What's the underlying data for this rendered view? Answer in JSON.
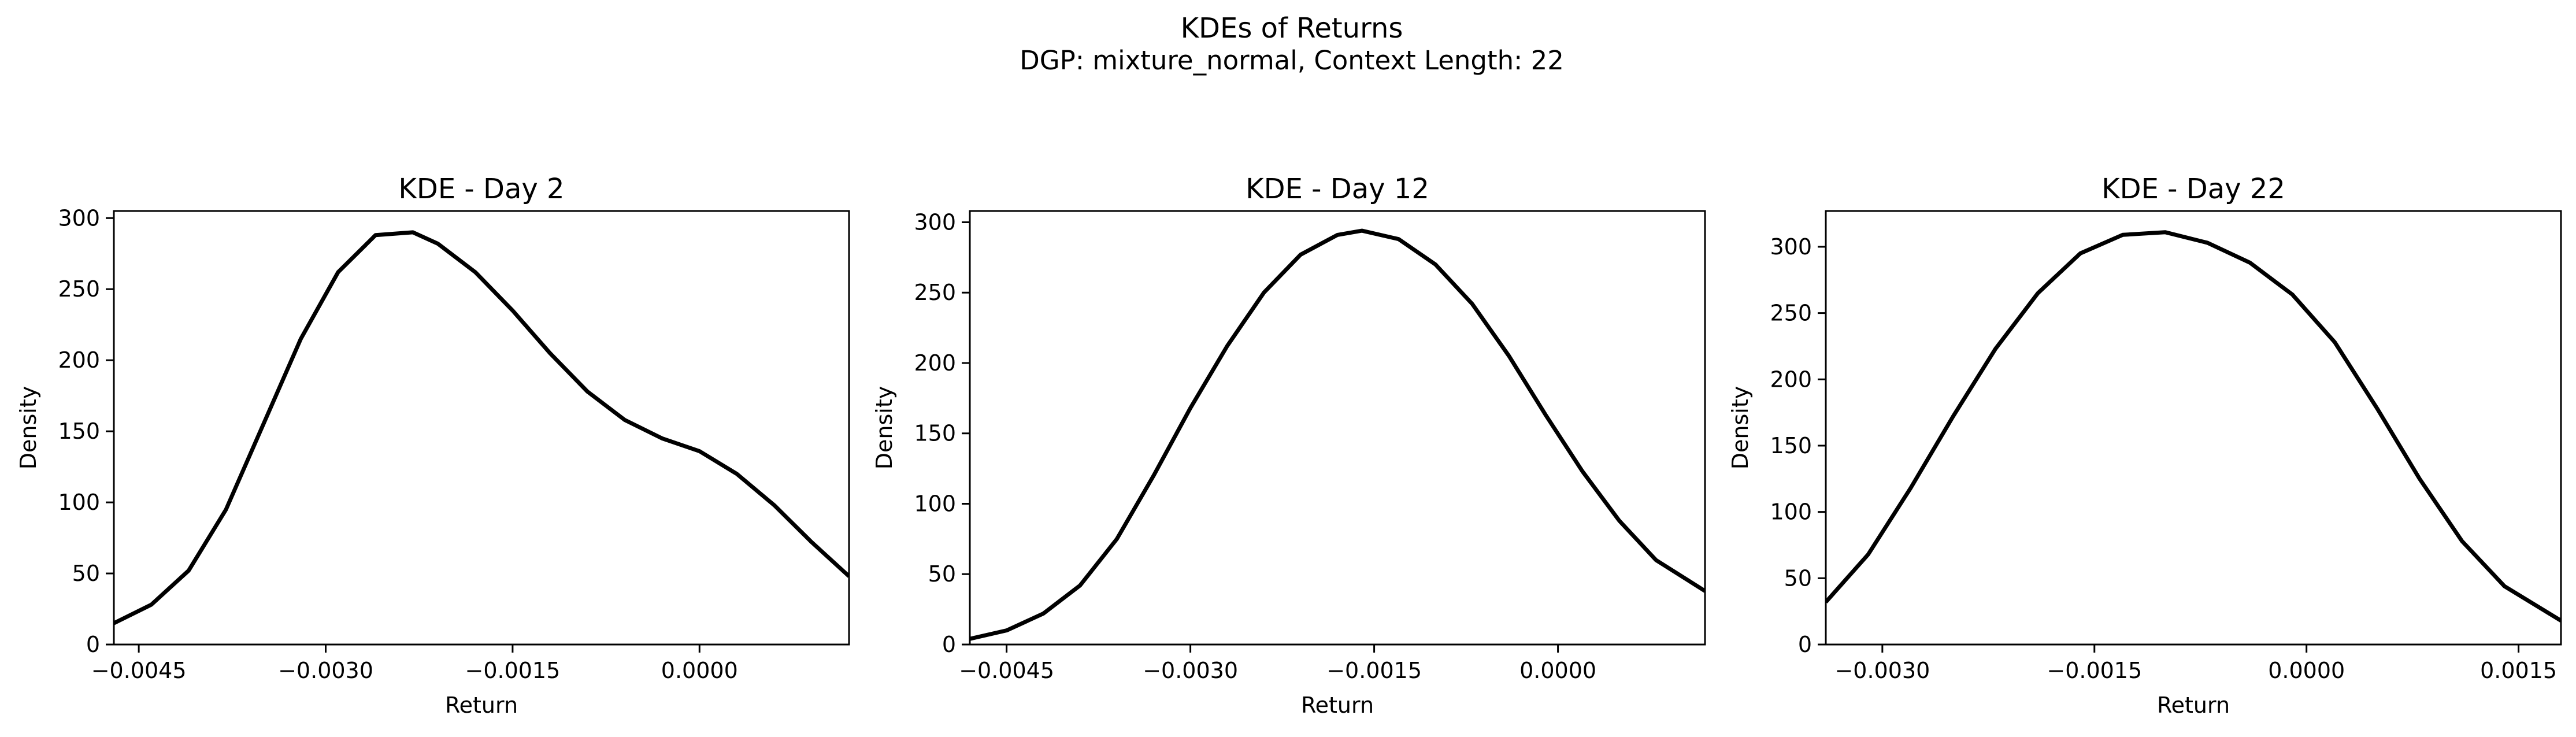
{
  "figure": {
    "title": "KDEs of Returns",
    "subtitle": "DGP: mixture_normal, Context Length: 22"
  },
  "chart_data": [
    {
      "type": "line",
      "title": "KDE - Day 2",
      "xlabel": "Return",
      "ylabel": "Density",
      "xlim": [
        -0.0047,
        0.0012
      ],
      "ylim": [
        0,
        305
      ],
      "xticks": [
        -0.0045,
        -0.003,
        -0.0015,
        0.0
      ],
      "xtick_labels": [
        "−0.0045",
        "−0.0030",
        "−0.0015",
        "0.0000"
      ],
      "yticks": [
        0,
        50,
        100,
        150,
        200,
        250,
        300
      ],
      "ytick_labels": [
        "0",
        "50",
        "100",
        "150",
        "200",
        "250",
        "300"
      ],
      "grid": false,
      "line_color": "#000000",
      "series": [
        {
          "x": [
            -0.0047,
            -0.0044,
            -0.0041,
            -0.0038,
            -0.0035,
            -0.0032,
            -0.0029,
            -0.0026,
            -0.0023,
            -0.0021,
            -0.0018,
            -0.0015,
            -0.0012,
            -0.0009,
            -0.0006,
            -0.0003,
            0.0,
            0.0003,
            0.0006,
            0.0009,
            0.0012
          ],
          "y": [
            15,
            28,
            52,
            95,
            155,
            215,
            262,
            288,
            290,
            282,
            262,
            235,
            205,
            178,
            158,
            145,
            136,
            120,
            98,
            72,
            48
          ]
        }
      ]
    },
    {
      "type": "line",
      "title": "KDE - Day 12",
      "xlabel": "Return",
      "ylabel": "Density",
      "xlim": [
        -0.0048,
        0.0012
      ],
      "ylim": [
        0,
        308
      ],
      "xticks": [
        -0.0045,
        -0.003,
        -0.0015,
        0.0
      ],
      "xtick_labels": [
        "−0.0045",
        "−0.0030",
        "−0.0015",
        "0.0000"
      ],
      "yticks": [
        0,
        50,
        100,
        150,
        200,
        250,
        300
      ],
      "ytick_labels": [
        "0",
        "50",
        "100",
        "150",
        "200",
        "250",
        "300"
      ],
      "grid": false,
      "line_color": "#000000",
      "series": [
        {
          "x": [
            -0.0048,
            -0.0045,
            -0.0042,
            -0.0039,
            -0.0036,
            -0.0033,
            -0.003,
            -0.0027,
            -0.0024,
            -0.0021,
            -0.0018,
            -0.0016,
            -0.0013,
            -0.001,
            -0.0007,
            -0.0004,
            -0.0001,
            0.0002,
            0.0005,
            0.0008,
            0.0012
          ],
          "y": [
            4,
            10,
            22,
            42,
            75,
            120,
            168,
            212,
            250,
            277,
            291,
            294,
            288,
            270,
            242,
            205,
            163,
            123,
            88,
            60,
            38
          ]
        }
      ]
    },
    {
      "type": "line",
      "title": "KDE - Day 22",
      "xlabel": "Return",
      "ylabel": "Density",
      "xlim": [
        -0.0034,
        0.0018
      ],
      "ylim": [
        0,
        327
      ],
      "xticks": [
        -0.003,
        -0.0015,
        0.0,
        0.0015
      ],
      "xtick_labels": [
        "−0.0030",
        "−0.0015",
        "0.0000",
        "0.0015"
      ],
      "yticks": [
        0,
        50,
        100,
        150,
        200,
        250,
        300
      ],
      "ytick_labels": [
        "0",
        "50",
        "100",
        "150",
        "200",
        "250",
        "300"
      ],
      "grid": false,
      "line_color": "#000000",
      "series": [
        {
          "x": [
            -0.0034,
            -0.0031,
            -0.0028,
            -0.0025,
            -0.0022,
            -0.0019,
            -0.0016,
            -0.0013,
            -0.001,
            -0.0007,
            -0.0004,
            -0.0001,
            0.0002,
            0.0005,
            0.0008,
            0.0011,
            0.0014,
            0.0018
          ],
          "y": [
            32,
            68,
            118,
            172,
            223,
            265,
            295,
            309,
            311,
            303,
            288,
            264,
            228,
            178,
            125,
            78,
            44,
            18
          ]
        }
      ]
    }
  ]
}
